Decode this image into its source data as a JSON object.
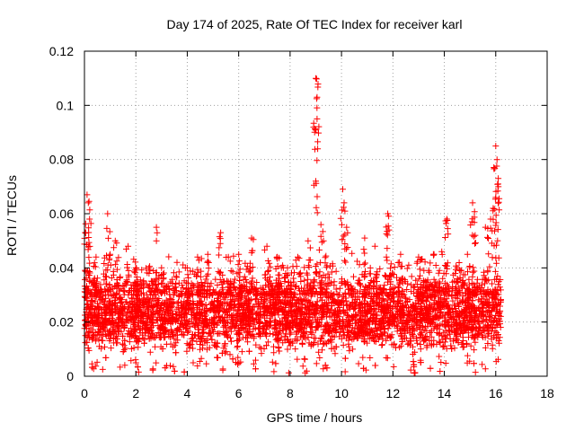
{
  "chart_data": {
    "type": "scatter",
    "title": "Day 174 of 2025, Rate Of TEC Index for receiver karl",
    "xlabel": "GPS time / hours",
    "ylabel": "ROTI / TECUs",
    "xlim": [
      0,
      18
    ],
    "ylim": [
      0,
      0.12
    ],
    "xticks": [
      0,
      2,
      4,
      6,
      8,
      10,
      12,
      14,
      16,
      18
    ],
    "xtick_labels": [
      "0",
      "2",
      "4",
      "6",
      "8",
      "10",
      "12",
      "14",
      "16",
      "18"
    ],
    "yticks": [
      0,
      0.02,
      0.04,
      0.06,
      0.08,
      0.1,
      0.12
    ],
    "ytick_labels": [
      "0",
      "0.02",
      "0.04",
      "0.06",
      "0.08",
      "0.1",
      "0.12"
    ],
    "grid": true,
    "marker": "+",
    "series_color": "#ff0000",
    "data_range_x": [
      0,
      16.2
    ],
    "bulk_band_y": [
      0.005,
      0.035
    ],
    "peaks": [
      {
        "x": 0.05,
        "y": 0.053
      },
      {
        "x": 0.1,
        "y": 0.067
      },
      {
        "x": 0.15,
        "y": 0.064
      },
      {
        "x": 0.2,
        "y": 0.058
      },
      {
        "x": 0.45,
        "y": 0.044
      },
      {
        "x": 0.9,
        "y": 0.06
      },
      {
        "x": 1.0,
        "y": 0.045
      },
      {
        "x": 1.2,
        "y": 0.05
      },
      {
        "x": 1.7,
        "y": 0.048
      },
      {
        "x": 2.0,
        "y": 0.04
      },
      {
        "x": 2.8,
        "y": 0.055
      },
      {
        "x": 3.0,
        "y": 0.04
      },
      {
        "x": 3.6,
        "y": 0.042
      },
      {
        "x": 4.0,
        "y": 0.04
      },
      {
        "x": 4.4,
        "y": 0.044
      },
      {
        "x": 4.8,
        "y": 0.045
      },
      {
        "x": 5.3,
        "y": 0.053
      },
      {
        "x": 5.6,
        "y": 0.044
      },
      {
        "x": 6.0,
        "y": 0.045
      },
      {
        "x": 6.5,
        "y": 0.051
      },
      {
        "x": 7.1,
        "y": 0.048
      },
      {
        "x": 7.5,
        "y": 0.044
      },
      {
        "x": 7.9,
        "y": 0.04
      },
      {
        "x": 8.3,
        "y": 0.044
      },
      {
        "x": 8.7,
        "y": 0.05
      },
      {
        "x": 9.0,
        "y": 0.11
      },
      {
        "x": 9.05,
        "y": 0.103
      },
      {
        "x": 9.05,
        "y": 0.095
      },
      {
        "x": 9.0,
        "y": 0.072
      },
      {
        "x": 9.2,
        "y": 0.056
      },
      {
        "x": 9.3,
        "y": 0.05
      },
      {
        "x": 10.05,
        "y": 0.069
      },
      {
        "x": 10.1,
        "y": 0.064
      },
      {
        "x": 10.2,
        "y": 0.055
      },
      {
        "x": 10.9,
        "y": 0.051
      },
      {
        "x": 11.3,
        "y": 0.048
      },
      {
        "x": 11.8,
        "y": 0.06
      },
      {
        "x": 11.85,
        "y": 0.054
      },
      {
        "x": 12.3,
        "y": 0.045
      },
      {
        "x": 13.0,
        "y": 0.044
      },
      {
        "x": 13.6,
        "y": 0.045
      },
      {
        "x": 13.9,
        "y": 0.046
      },
      {
        "x": 14.1,
        "y": 0.058
      },
      {
        "x": 14.5,
        "y": 0.04
      },
      {
        "x": 14.9,
        "y": 0.045
      },
      {
        "x": 15.1,
        "y": 0.064
      },
      {
        "x": 15.2,
        "y": 0.052
      },
      {
        "x": 15.6,
        "y": 0.055
      },
      {
        "x": 15.8,
        "y": 0.058
      },
      {
        "x": 15.9,
        "y": 0.062
      },
      {
        "x": 16.0,
        "y": 0.085
      },
      {
        "x": 16.05,
        "y": 0.08
      },
      {
        "x": 16.1,
        "y": 0.073
      },
      {
        "x": 16.0,
        "y": 0.066
      }
    ]
  }
}
